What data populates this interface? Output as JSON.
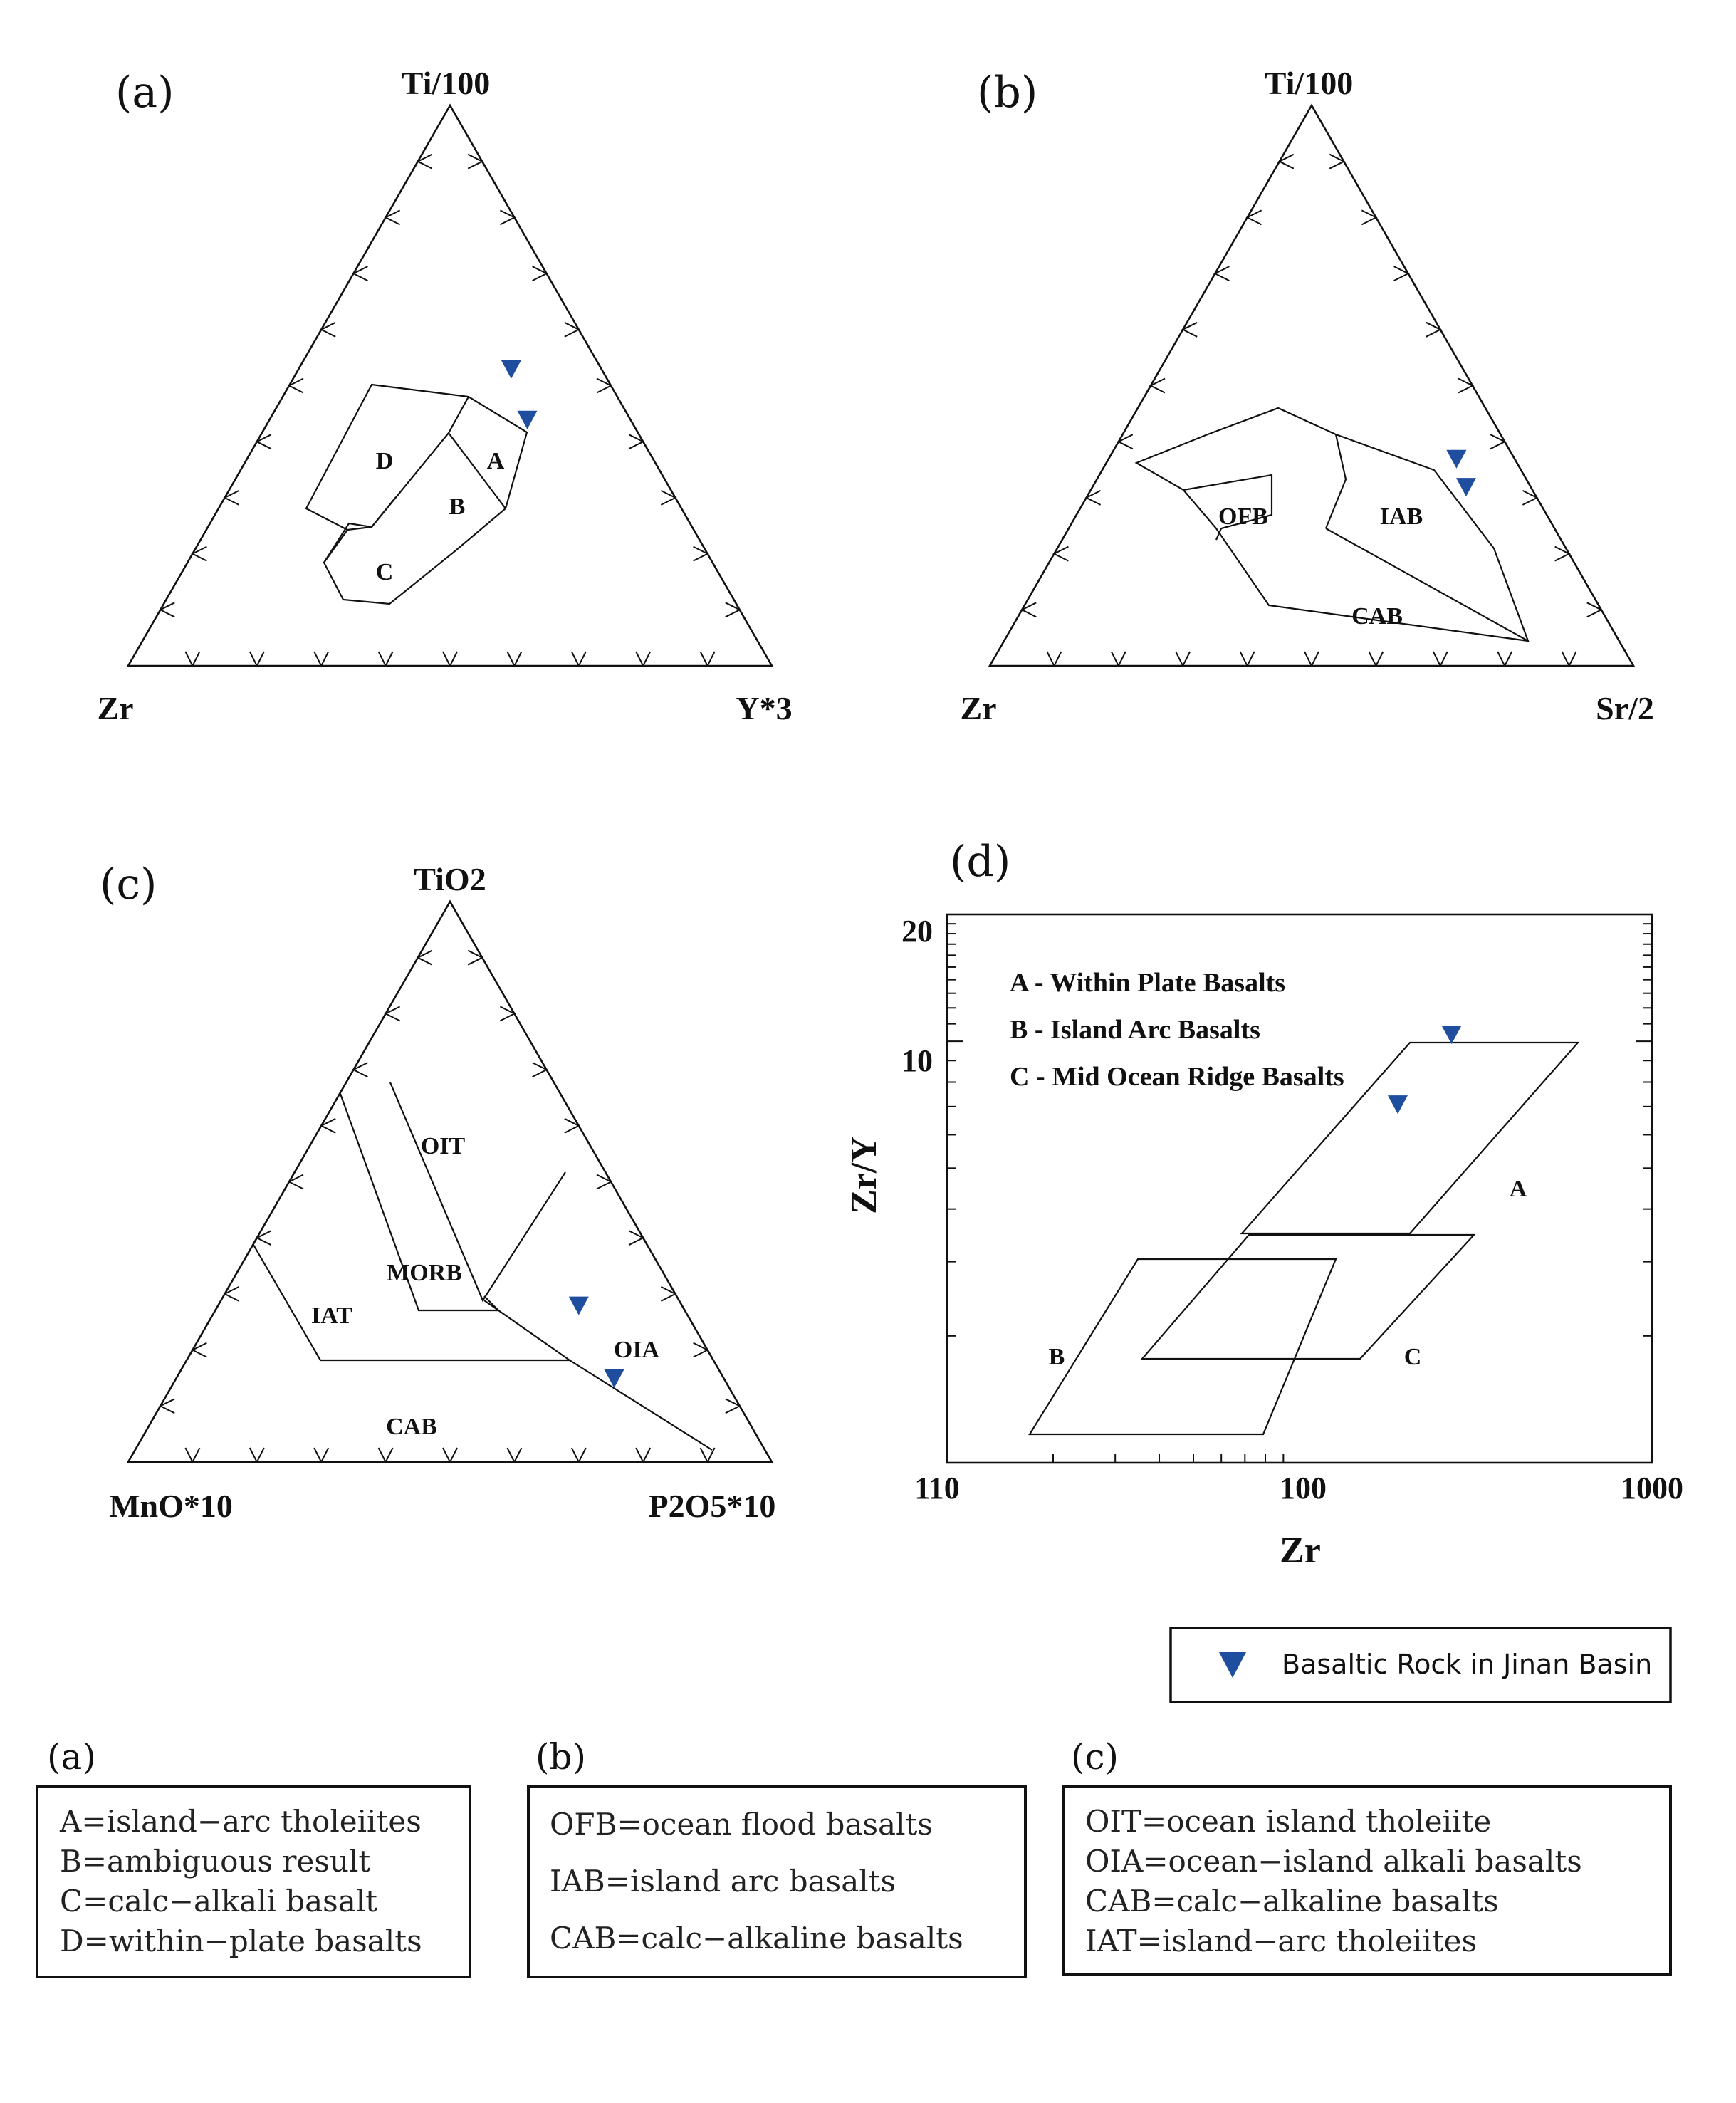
{
  "chart_data": [
    {
      "type": "ternary",
      "panel": "(a)",
      "apices": {
        "top": "Ti/100",
        "left": "Zr",
        "right": "Y*3"
      },
      "fields": [
        "D",
        "A",
        "B",
        "C"
      ],
      "series": [
        {
          "name": "Basaltic Rock in Jinan Basin",
          "points": [
            [
              0.53,
              0.14,
              0.33
            ],
            [
              0.44,
              0.16,
              0.4
            ]
          ]
        }
      ]
    },
    {
      "type": "ternary",
      "panel": "(b)",
      "apices": {
        "top": "Ti/100",
        "left": "Zr",
        "right": "Sr/2"
      },
      "fields": [
        "OFB",
        "IAB",
        "CAB"
      ],
      "series": [
        {
          "name": "Basaltic Rock in Jinan Basin",
          "points": [
            [
              0.37,
              0.09,
              0.54
            ],
            [
              0.32,
              0.1,
              0.58
            ]
          ]
        }
      ]
    },
    {
      "type": "ternary",
      "panel": "(c)",
      "apices": {
        "top": "TiO2",
        "left": "MnO*10",
        "right": "P2O5*10"
      },
      "fields": [
        "OIT",
        "MORB",
        "IAT",
        "OIA",
        "CAB"
      ],
      "series": [
        {
          "name": "Basaltic Rock in Jinan Basin",
          "points": [
            [
              0.28,
              0.16,
              0.56
            ],
            [
              0.15,
              0.17,
              0.68
            ]
          ]
        }
      ]
    },
    {
      "type": "scatter",
      "panel": "(d)",
      "xlabel": "Zr",
      "ylabel": "Zr/Y",
      "x_ticks": [
        "110",
        "100",
        "1000"
      ],
      "y_ticks": [
        "20",
        "10"
      ],
      "legend": [
        "A - Within Plate Basalts",
        "B - Island Arc Basalts",
        "C - Mid Ocean Ridge Basalts"
      ],
      "fields": [
        "A",
        "B",
        "C"
      ],
      "series": [
        {
          "name": "Basaltic Rock in Jinan Basin",
          "points": [
            {
              "x": 270,
              "y": 10.4
            },
            {
              "x": 190,
              "y": 7.1
            }
          ]
        }
      ]
    }
  ],
  "figure": {
    "panel_a": {
      "letter": "(a)",
      "top": "Ti/100",
      "left": "Zr",
      "right": "Y*3",
      "labels": {
        "D": "D",
        "A": "A",
        "B": "B",
        "C": "C"
      }
    },
    "panel_b": {
      "letter": "(b)",
      "top": "Ti/100",
      "left": "Zr",
      "right": "Sr/2",
      "labels": {
        "OFB": "OFB",
        "IAB": "IAB",
        "CAB": "CAB"
      }
    },
    "panel_c": {
      "letter": "(c)",
      "top": "TiO2",
      "left": "MnO*10",
      "right": "P2O5*10",
      "labels": {
        "OIT": "OIT",
        "MORB": "MORB",
        "IAT": "IAT",
        "OIA": "OIA",
        "CAB": "CAB"
      }
    },
    "panel_d": {
      "letter": "(d)",
      "ylabel": "Zr/Y",
      "xlabel": "Zr",
      "yticks": {
        "t20": "20",
        "t10": "10"
      },
      "xticks": {
        "t110": "110",
        "t100": "100",
        "t1000": "1000"
      },
      "legend": {
        "a": "A - Within Plate Basalts",
        "b": "B - Island Arc Basalts",
        "c": "C - Mid Ocean Ridge Basalts"
      },
      "labels": {
        "A": "A",
        "B": "B",
        "C": "C"
      }
    },
    "marker_legend": {
      "label": "Basaltic Rock in Jinan Basin"
    },
    "marker_color": "#1f4e9e",
    "keys": {
      "a": {
        "letter": "(a)",
        "lines": [
          "A=island−arc tholeiites",
          "B=ambiguous result",
          "C=calc−alkali basalt",
          "D=within−plate basalts"
        ]
      },
      "b": {
        "letter": "(b)",
        "lines": [
          "OFB=ocean flood basalts",
          "IAB=island arc basalts",
          "CAB=calc−alkaline basalts"
        ]
      },
      "c": {
        "letter": "(c)",
        "lines": [
          "OIT=ocean island tholeiite",
          "OIA=ocean−island alkali basalts",
          "CAB=calc−alkaline basalts",
          "IAT=island−arc tholeiites"
        ]
      }
    }
  }
}
